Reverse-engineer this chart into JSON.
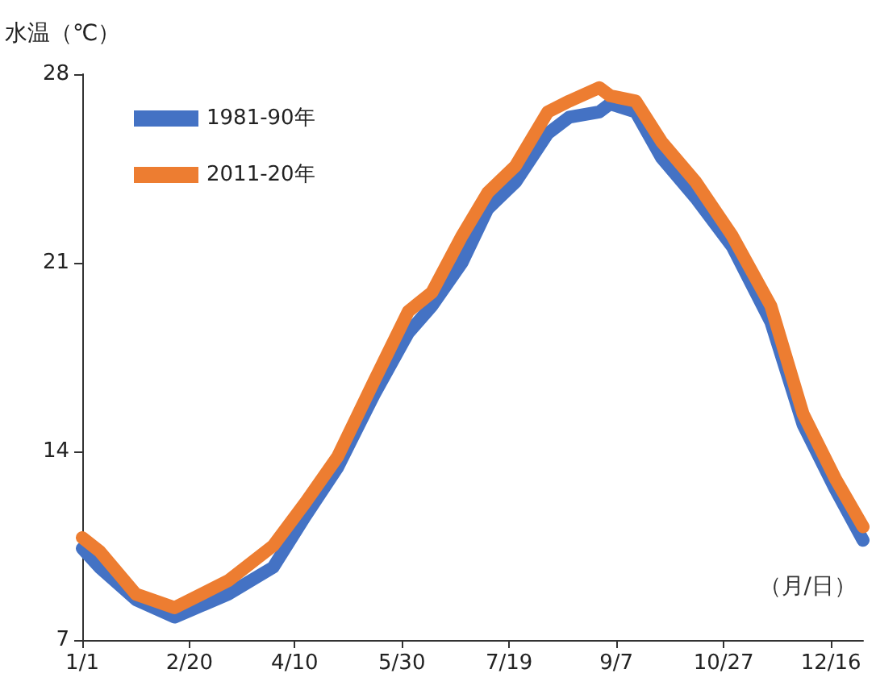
{
  "chart_data": {
    "type": "line",
    "ylabel": "水温（℃）",
    "xlabel": "（月/日）",
    "x": [
      "--01-01",
      "--01-09",
      "--01-26",
      "--02-13",
      "--03-10",
      "--03-31",
      "--04-15",
      "--04-30",
      "--05-17",
      "--06-02",
      "--06-13",
      "--06-27",
      "--07-09",
      "--07-22",
      "--08-06",
      "--08-16",
      "--08-30",
      "--09-04",
      "--09-16",
      "--09-28",
      "--10-14",
      "--10-31",
      "--11-18",
      "--12-03",
      "--12-18",
      "--12-31"
    ],
    "series": [
      {
        "name": "1981-90年",
        "color": "#4472c4",
        "values": [
          10.4,
          9.7,
          8.5,
          7.85,
          8.7,
          9.7,
          11.6,
          13.4,
          16.1,
          18.4,
          19.4,
          21.0,
          23.0,
          24.0,
          25.8,
          26.4,
          26.6,
          26.9,
          26.6,
          24.9,
          23.4,
          21.6,
          18.8,
          15.0,
          12.6,
          10.7
        ]
      },
      {
        "name": "2011-20年",
        "color": "#ed7d31",
        "values": [
          10.8,
          10.3,
          8.7,
          8.2,
          9.2,
          10.5,
          12.1,
          13.8,
          16.6,
          19.2,
          19.9,
          22.0,
          23.6,
          24.6,
          26.6,
          27.0,
          27.5,
          27.2,
          27.0,
          25.5,
          24.0,
          22.0,
          19.4,
          15.4,
          13.0,
          11.2
        ]
      }
    ],
    "xlim": [
      "--01-01",
      "--12-31"
    ],
    "xticks": [
      {
        "value": "--01-01",
        "label": "1/1"
      },
      {
        "value": "--02-20",
        "label": "2/20"
      },
      {
        "value": "--04-10",
        "label": "4/10"
      },
      {
        "value": "--05-30",
        "label": "5/30"
      },
      {
        "value": "--07-19",
        "label": "7/19"
      },
      {
        "value": "--09-07",
        "label": "9/7"
      },
      {
        "value": "--10-27",
        "label": "10/27"
      },
      {
        "value": "--12-16",
        "label": "12/16"
      }
    ],
    "ylim": [
      7,
      28
    ],
    "yticks": [
      7,
      14,
      21,
      28
    ],
    "grid": false,
    "legend": "top left",
    "marker": "none",
    "line_style": "solid"
  }
}
